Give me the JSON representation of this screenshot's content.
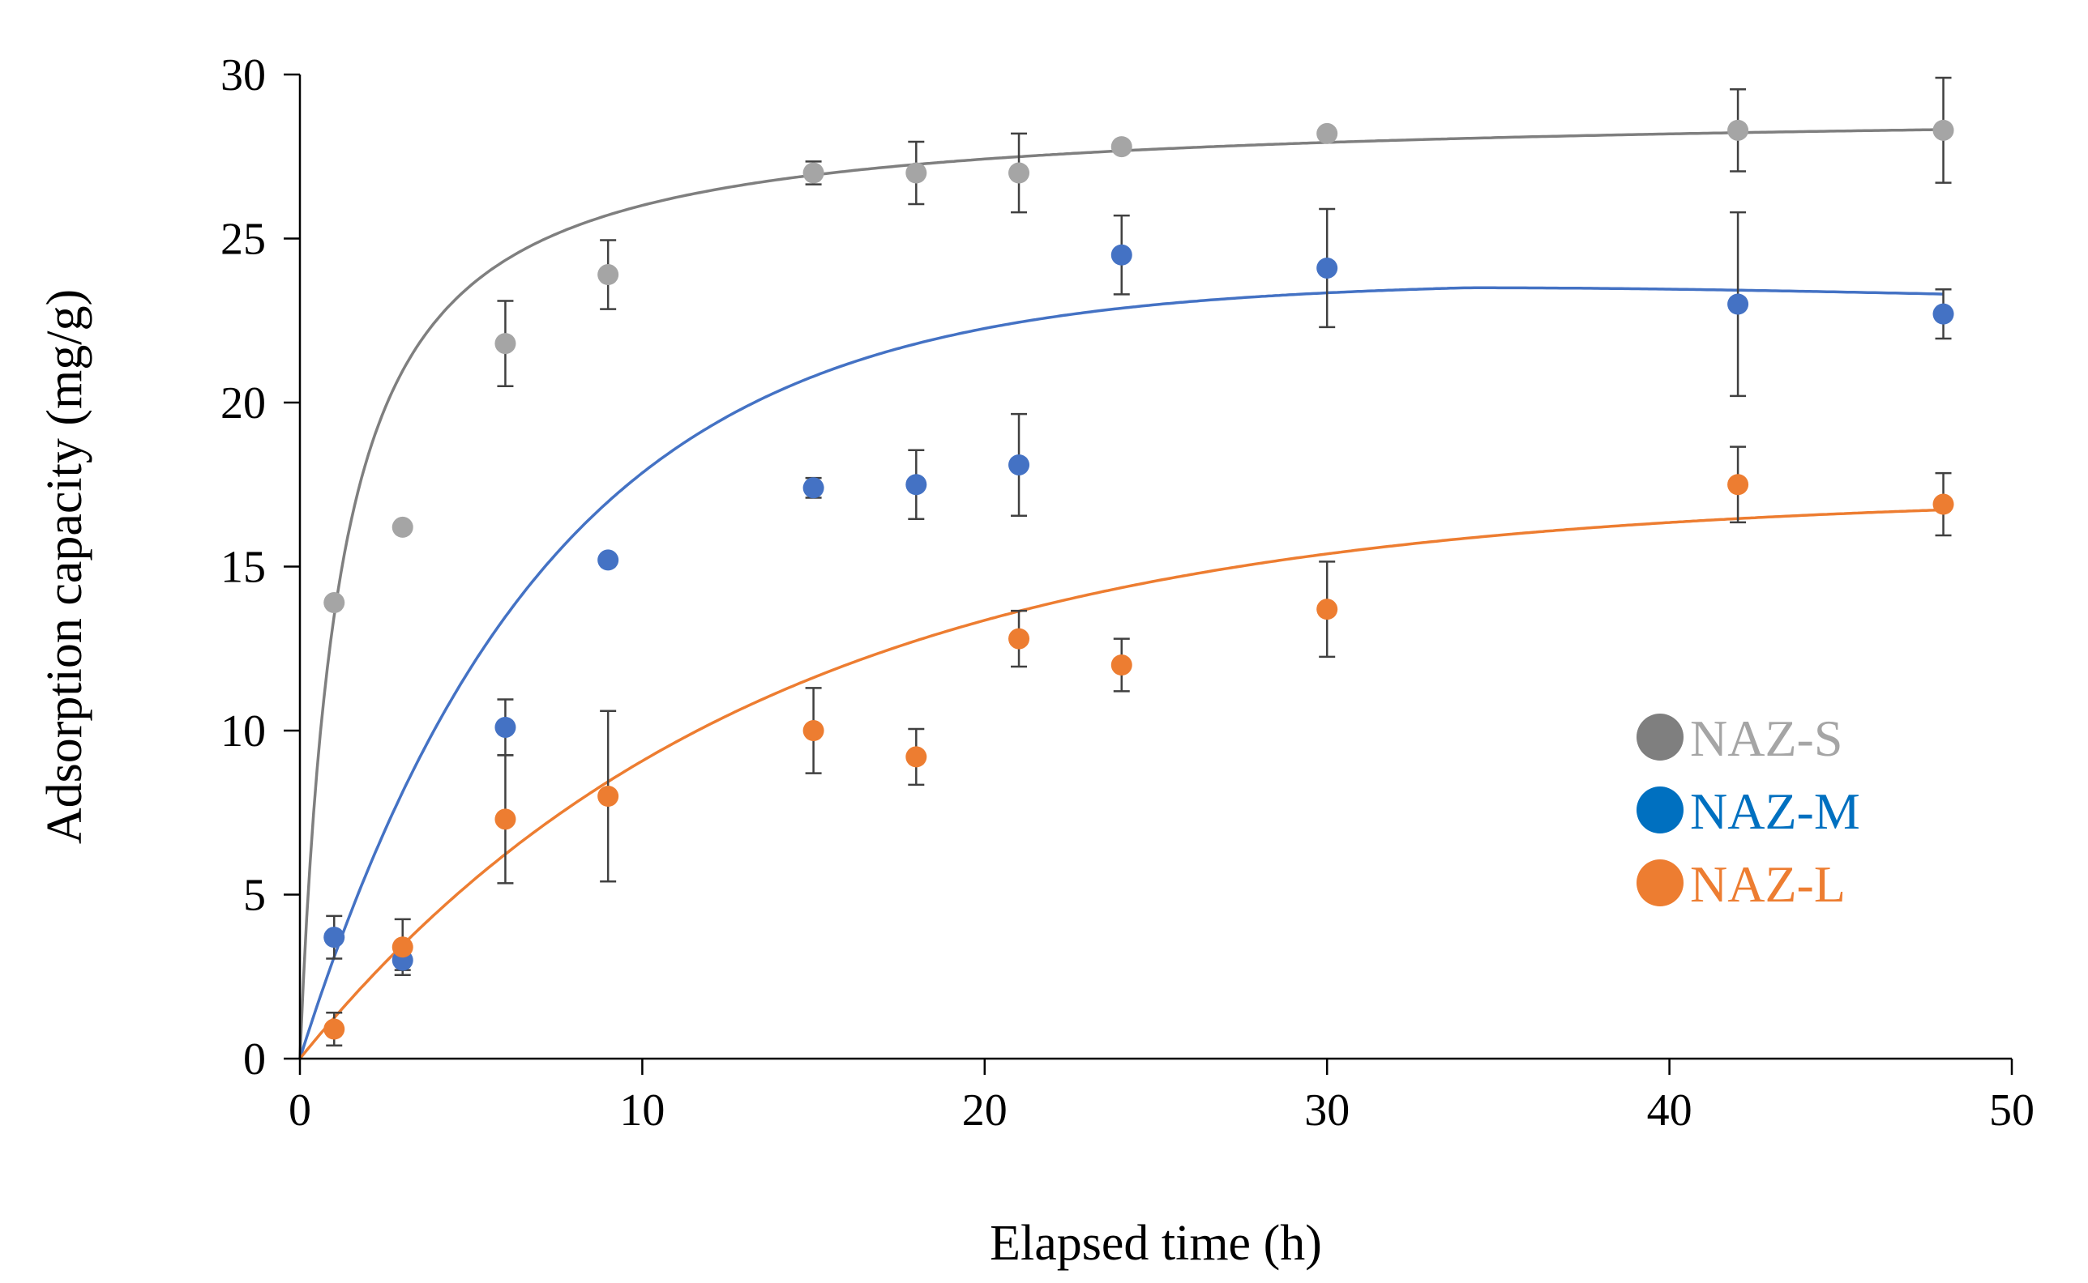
{
  "chart_data": {
    "type": "scatter",
    "title": "",
    "xlabel": "Elapsed time (h)",
    "ylabel": "Adsorption capacity (mg/g)",
    "xlim": [
      0,
      50
    ],
    "ylim": [
      0,
      30
    ],
    "x_ticks": [
      0,
      10,
      20,
      30,
      40,
      50
    ],
    "y_ticks": [
      0,
      5,
      10,
      15,
      20,
      25,
      30
    ],
    "x_tick_labels": [
      "0",
      "10",
      "20",
      "30",
      "40",
      "50"
    ],
    "y_tick_labels": [
      "0",
      "5",
      "10",
      "15",
      "20",
      "25",
      "30"
    ],
    "grid": false,
    "legend_position": "right",
    "series": [
      {
        "name": "NAZ-S",
        "color": "#A5A5A5",
        "fit_color": "#7F7F7F",
        "x": [
          1,
          3,
          6,
          9,
          15,
          18,
          21,
          24,
          30,
          42,
          48
        ],
        "values": [
          13.9,
          16.2,
          21.8,
          23.9,
          27.0,
          27.0,
          27.0,
          27.8,
          28.2,
          28.3,
          28.3
        ],
        "errors": [
          0,
          0,
          1.3,
          1.05,
          0.35,
          0.95,
          1.2,
          0,
          0,
          1.25,
          1.6
        ],
        "fit": {
          "model": "pseudo-second-order",
          "qe": 29.0,
          "k": 0.03
        }
      },
      {
        "name": "NAZ-M",
        "color": "#4472C4",
        "fit_color": "#4472C4",
        "x": [
          1,
          3,
          6,
          9,
          15,
          18,
          21,
          24,
          30,
          42,
          48
        ],
        "values": [
          3.7,
          3.0,
          10.1,
          15.2,
          17.4,
          17.5,
          18.1,
          24.5,
          24.1,
          23.0,
          22.7
        ],
        "errors": [
          0.65,
          0.3,
          0.85,
          0,
          0.3,
          1.05,
          1.55,
          1.2,
          1.8,
          2.8,
          0.75
        ],
        "fit": {
          "model": "rise-and-decay",
          "q0": 23.7,
          "k": 0.14,
          "peak_t": 34
        }
      },
      {
        "name": "NAZ-L",
        "color": "#ED7D31",
        "fit_color": "#ED7D31",
        "x": [
          1,
          3,
          6,
          9,
          15,
          18,
          21,
          24,
          30,
          42,
          48
        ],
        "values": [
          0.9,
          3.4,
          7.3,
          8.0,
          10.0,
          9.2,
          12.8,
          12.0,
          13.7,
          17.5,
          16.9
        ],
        "errors": [
          0.5,
          0.85,
          1.95,
          2.6,
          1.3,
          0.85,
          0.85,
          0.8,
          1.45,
          1.15,
          0.95
        ],
        "fit": {
          "model": "pseudo-first-order",
          "qe": 17.2,
          "k": 0.075
        }
      }
    ]
  }
}
